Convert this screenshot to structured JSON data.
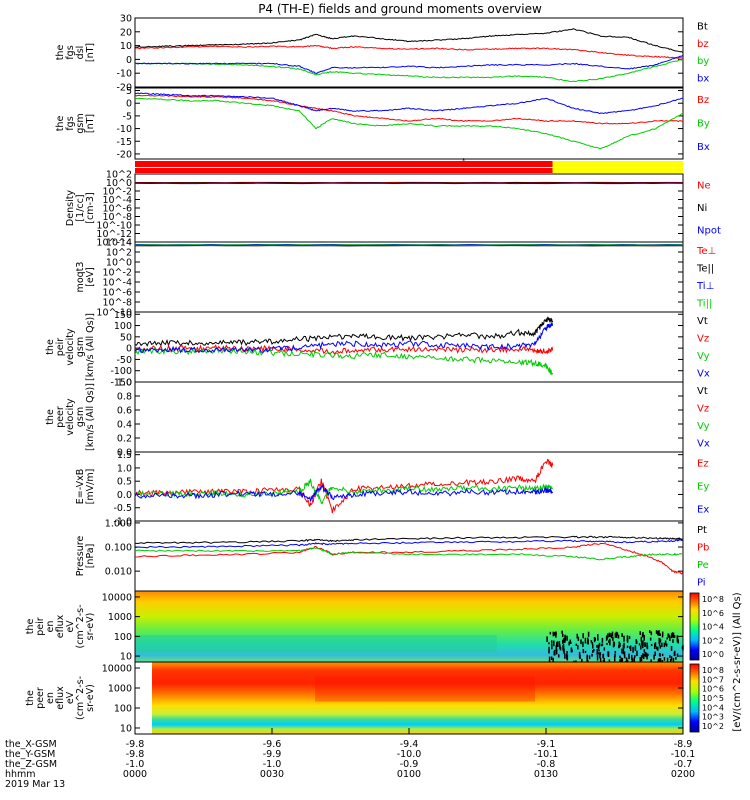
{
  "title": "P4 (TH-E) fields and ground moments overview",
  "date_label": "2019 Mar 13",
  "colors": {
    "black": "#000000",
    "red": "#ff0000",
    "green": "#00cc00",
    "blue": "#0000ff",
    "purple": "#8800aa"
  },
  "bars": {
    "bar1": {
      "segments": [
        {
          "color": "#ff0000",
          "to": 0.762
        },
        {
          "color": "#ffff00",
          "to": 1.0
        }
      ]
    },
    "bar2": {
      "segments": [
        {
          "color": "#ff0000",
          "to": 0.762
        },
        {
          "color": "#ffff00",
          "to": 1.0
        }
      ]
    }
  },
  "colorbar": {
    "label": "[eV/(cm^2-s-sr-eV)] (All Qs)",
    "ion_ticks": [
      "10^8",
      "10^6",
      "10^4",
      "10^2",
      "10^0"
    ],
    "ele_ticks": [
      "10^8",
      "10^7",
      "10^6",
      "10^5",
      "10^4",
      "10^3",
      "10^2"
    ]
  },
  "xaxis": {
    "row_labels": [
      "the_X-GSM",
      "the_Y-GSM",
      "the_Z-GSM",
      "hhmm"
    ],
    "columns": [
      {
        "X": "-9.8",
        "Y": "-9.8",
        "Z": "-1.0",
        "t": "0000"
      },
      {
        "X": "-9.6",
        "Y": "-9.9",
        "Z": "-1.0",
        "t": "0030"
      },
      {
        "X": "-9.4",
        "Y": "-10.0",
        "Z": "-0.9",
        "t": "0100"
      },
      {
        "X": "-9.1",
        "Y": "-10.1",
        "Z": "-0.8",
        "t": "0130"
      },
      {
        "X": "-8.9",
        "Y": "-10.1",
        "Z": "-0.7",
        "t": "0200"
      }
    ]
  },
  "chart_data": [
    {
      "id": "fgs_dsl",
      "type": "line",
      "ylabel": [
        "the",
        "fgs",
        "dsl",
        "[nT]"
      ],
      "ylim": [
        -20,
        30
      ],
      "yticks": [
        "30",
        "20",
        "10",
        "0",
        "-10",
        "-20"
      ],
      "legend": [
        {
          "label": "Bt",
          "color": "#000000"
        },
        {
          "label": "bz",
          "color": "#ff0000"
        },
        {
          "label": "by",
          "color": "#00cc00"
        },
        {
          "label": "bx",
          "color": "#0000ff"
        }
      ],
      "x": [
        0,
        0.05,
        0.1,
        0.15,
        0.2,
        0.25,
        0.3,
        0.33,
        0.36,
        0.4,
        0.45,
        0.5,
        0.55,
        0.6,
        0.65,
        0.7,
        0.75,
        0.8,
        0.85,
        0.9,
        0.95,
        1.0
      ],
      "series": [
        {
          "name": "Bt",
          "color": "#000000",
          "values": [
            9,
            9.5,
            10,
            10.5,
            11,
            12,
            14,
            18,
            15,
            17,
            15,
            13,
            14,
            15,
            17,
            18,
            19,
            22,
            17,
            16,
            10,
            5
          ]
        },
        {
          "name": "bz",
          "color": "#ff0000",
          "values": [
            8,
            8.5,
            9,
            9.5,
            9,
            9.5,
            9,
            10,
            8,
            9,
            8,
            7.5,
            8,
            7,
            7.5,
            8,
            8,
            7,
            5,
            3,
            2,
            1
          ]
        },
        {
          "name": "by",
          "color": "#00cc00",
          "values": [
            -3,
            -3,
            -3,
            -3.5,
            -4,
            -5,
            -7,
            -11,
            -9,
            -10,
            -11,
            -12,
            -13,
            -13,
            -13,
            -12,
            -13,
            -16,
            -14,
            -10,
            -5,
            0
          ]
        },
        {
          "name": "bx",
          "color": "#0000ff",
          "values": [
            -3,
            -3,
            -3,
            -3,
            -3,
            -3,
            -5,
            -10,
            -6,
            -6,
            -6,
            -5,
            -6,
            -5,
            -4,
            -4,
            -4,
            -3,
            -5,
            -7,
            -4,
            3
          ]
        }
      ]
    },
    {
      "id": "fgs_gsm",
      "type": "line",
      "ylabel": [
        "the",
        "fgs",
        "gsm",
        "[nT]"
      ],
      "ylim": [
        -22,
        6
      ],
      "yticks": [
        "5",
        "0",
        "-5",
        "-10",
        "-15",
        "-20"
      ],
      "legend": [
        {
          "label": "Bz",
          "color": "#ff0000"
        },
        {
          "label": "By",
          "color": "#00cc00"
        },
        {
          "label": "Bx",
          "color": "#0000ff"
        }
      ],
      "x": [
        0,
        0.05,
        0.1,
        0.15,
        0.2,
        0.25,
        0.3,
        0.33,
        0.36,
        0.4,
        0.45,
        0.5,
        0.55,
        0.6,
        0.65,
        0.7,
        0.75,
        0.8,
        0.85,
        0.9,
        0.95,
        1.0
      ],
      "series": [
        {
          "name": "Bz",
          "color": "#ff0000",
          "values": [
            3,
            3,
            2.5,
            2.5,
            2,
            1,
            -1,
            -2,
            -3,
            -5,
            -6,
            -7,
            -6,
            -7,
            -7,
            -6,
            -7,
            -7,
            -8,
            -8,
            -7,
            -7
          ]
        },
        {
          "name": "By",
          "color": "#00cc00",
          "values": [
            2,
            1.5,
            1,
            1,
            0,
            -1,
            -3,
            -10,
            -6,
            -8,
            -9,
            -8,
            -9,
            -9,
            -9,
            -10,
            -12,
            -15,
            -18,
            -13,
            -10,
            -4
          ]
        },
        {
          "name": "Bx",
          "color": "#0000ff",
          "values": [
            4,
            3.5,
            3,
            3,
            2.5,
            2,
            -1,
            -3,
            -2,
            -3,
            -3,
            -2,
            -3,
            -2,
            -1,
            0,
            2,
            -2,
            -4,
            -3,
            -1,
            2
          ]
        }
      ]
    },
    {
      "id": "density",
      "type": "line",
      "log": true,
      "ylabel": [
        "Density",
        "[1/cc]",
        "[cm-3]"
      ],
      "ylim": [
        1e-14,
        100
      ],
      "yticks": [
        "10^2",
        "10^0",
        "10^-2",
        "10^-4",
        "10^-6",
        "10^-8",
        "10^-10",
        "10^-12",
        "10^-14"
      ],
      "legend": [
        {
          "label": "Ne",
          "color": "#ff0000"
        },
        {
          "label": "Ni",
          "color": "#000000"
        },
        {
          "label": "Npot",
          "color": "#0000ff"
        }
      ],
      "x": [
        0,
        0.5,
        1.0
      ],
      "series": [
        {
          "name": "Ne",
          "color": "#ff0000",
          "values": [
            1,
            1,
            1
          ]
        },
        {
          "name": "Ni",
          "color": "#000000",
          "values": [
            0.8,
            0.8,
            0.8
          ]
        },
        {
          "name": "Npot",
          "color": "#0000ff",
          "values": [
            0.6,
            0.6,
            0.6
          ]
        }
      ]
    },
    {
      "id": "temperature",
      "type": "line",
      "log": true,
      "ylabel": [
        "moqt3",
        "[eV]"
      ],
      "ylim": [
        1e-10,
        10000
      ],
      "yticks": [
        "10^4",
        "10^2",
        "10^0",
        "10^-2",
        "10^-4",
        "10^-6",
        "10^-8",
        "10^-10"
      ],
      "legend": [
        {
          "label": "Te⊥",
          "color": "#ff0000"
        },
        {
          "label": "Te||",
          "color": "#000000"
        },
        {
          "label": "Ti⊥",
          "color": "#0000ff"
        },
        {
          "label": "Ti||",
          "color": "#00cc00"
        }
      ],
      "x": [
        0,
        0.5,
        1.0
      ],
      "series": [
        {
          "name": "Te⊥",
          "color": "#ff0000",
          "values": [
            2000,
            2000,
            2000
          ]
        },
        {
          "name": "Te||",
          "color": "#000000",
          "values": [
            1800,
            1800,
            1800
          ]
        },
        {
          "name": "Ti⊥",
          "color": "#0000ff",
          "values": [
            3000,
            3000,
            3000
          ]
        },
        {
          "name": "Ti||",
          "color": "#00cc00",
          "values": [
            2500,
            2500,
            2500
          ]
        }
      ]
    },
    {
      "id": "ion_velocity",
      "type": "line",
      "ylabel": [
        "the",
        "peir",
        "velocity",
        "gsm",
        "[km/s (All Qs)]"
      ],
      "ylim": [
        -150,
        160
      ],
      "yticks": [
        "150",
        "100",
        "50",
        "0",
        "-50",
        "-100",
        "-150"
      ],
      "legend": [
        {
          "label": "Vt",
          "color": "#000000"
        },
        {
          "label": "Vz",
          "color": "#ff0000"
        },
        {
          "label": "Vy",
          "color": "#00cc00"
        },
        {
          "label": "Vx",
          "color": "#0000ff"
        }
      ],
      "x": [
        0,
        0.05,
        0.1,
        0.15,
        0.2,
        0.25,
        0.3,
        0.35,
        0.4,
        0.45,
        0.5,
        0.55,
        0.6,
        0.65,
        0.7,
        0.73,
        0.75,
        0.762
      ],
      "series": [
        {
          "name": "Vt",
          "color": "#000000",
          "values": [
            20,
            22,
            24,
            22,
            25,
            30,
            40,
            45,
            55,
            50,
            45,
            48,
            60,
            50,
            70,
            65,
            130,
            120
          ]
        },
        {
          "name": "Vz",
          "color": "#ff0000",
          "values": [
            -5,
            0,
            -3,
            2,
            -5,
            0,
            -10,
            -15,
            -10,
            -5,
            -8,
            -5,
            -10,
            -8,
            -5,
            -10,
            -12,
            -10
          ]
        },
        {
          "name": "Vy",
          "color": "#00cc00",
          "values": [
            -15,
            -12,
            -15,
            -10,
            -15,
            -20,
            -25,
            -30,
            -35,
            -30,
            -40,
            -45,
            -50,
            -55,
            -60,
            -65,
            -80,
            -110
          ]
        },
        {
          "name": "Vx",
          "color": "#0000ff",
          "values": [
            -10,
            -5,
            -8,
            -5,
            -10,
            -5,
            0,
            15,
            20,
            10,
            20,
            15,
            10,
            5,
            10,
            20,
            90,
            110
          ]
        }
      ]
    },
    {
      "id": "ele_velocity",
      "type": "line",
      "ylabel": [
        "the",
        "peer",
        "velocity",
        "gsm",
        "[km/s (All Qs)]"
      ],
      "ylim": [
        0,
        1
      ],
      "yticks": [
        "1.0",
        "0.8",
        "0.6",
        "0.4",
        "0.2",
        "0.0"
      ],
      "legend": [
        {
          "label": "Vt",
          "color": "#000000"
        },
        {
          "label": "Vz",
          "color": "#ff0000"
        },
        {
          "label": "Vy",
          "color": "#00cc00"
        },
        {
          "label": "Vx",
          "color": "#0000ff"
        }
      ],
      "x": [],
      "series": []
    },
    {
      "id": "efield",
      "type": "line",
      "ylabel": [
        "E=-VxB",
        "[mV/m]"
      ],
      "ylim": [
        -1,
        1.6
      ],
      "yticks": [
        "1.5",
        "1.0",
        "0.5",
        "0.0",
        "-0.5",
        "-1.0"
      ],
      "legend": [
        {
          "label": "Ez",
          "color": "#ff0000"
        },
        {
          "label": "Ey",
          "color": "#00cc00"
        },
        {
          "label": "Ex",
          "color": "#0000ff"
        }
      ],
      "x": [
        0,
        0.05,
        0.1,
        0.15,
        0.2,
        0.25,
        0.3,
        0.32,
        0.34,
        0.36,
        0.4,
        0.45,
        0.5,
        0.55,
        0.6,
        0.65,
        0.7,
        0.73,
        0.75,
        0.762
      ],
      "series": [
        {
          "name": "Ez",
          "color": "#ff0000",
          "values": [
            0.05,
            0.05,
            0.08,
            0.1,
            0.12,
            0.15,
            0.2,
            -0.4,
            0.5,
            -0.6,
            0.2,
            0.25,
            0.35,
            0.4,
            0.45,
            0.45,
            0.6,
            0.5,
            1.3,
            1.1
          ]
        },
        {
          "name": "Ey",
          "color": "#00cc00",
          "values": [
            0.0,
            0.05,
            0.0,
            0.05,
            0.0,
            0.05,
            0.1,
            0.5,
            -0.3,
            0.3,
            0.1,
            0.15,
            0.2,
            0.2,
            0.25,
            0.2,
            0.25,
            0.2,
            0.3,
            0.2
          ]
        },
        {
          "name": "Ex",
          "color": "#0000ff",
          "values": [
            -0.05,
            0.0,
            -0.05,
            0.0,
            0.05,
            0.0,
            0.05,
            -0.2,
            0.3,
            -0.1,
            0.0,
            0.05,
            0.1,
            0.0,
            0.1,
            0.05,
            0.1,
            0.1,
            0.15,
            0.1
          ]
        }
      ]
    },
    {
      "id": "pressure",
      "type": "line",
      "log": true,
      "ylabel": [
        "Pressure",
        "[nPa]"
      ],
      "ylim": [
        0.0015,
        1.2
      ],
      "yticks": [
        "1.000",
        "0.100",
        "0.010"
      ],
      "legend": [
        {
          "label": "Pt",
          "color": "#000000"
        },
        {
          "label": "Pb",
          "color": "#ff0000"
        },
        {
          "label": "Pe",
          "color": "#00cc00"
        },
        {
          "label": "Pi",
          "color": "#0000ff"
        }
      ],
      "x": [
        0,
        0.1,
        0.2,
        0.3,
        0.33,
        0.36,
        0.4,
        0.5,
        0.6,
        0.7,
        0.8,
        0.85,
        0.9,
        0.95,
        0.98,
        1.0
      ],
      "series": [
        {
          "name": "Pt",
          "color": "#000000",
          "values": [
            0.15,
            0.15,
            0.16,
            0.18,
            0.2,
            0.18,
            0.2,
            0.22,
            0.24,
            0.25,
            0.26,
            0.26,
            0.25,
            0.23,
            0.22,
            0.22
          ]
        },
        {
          "name": "Pb",
          "color": "#ff0000",
          "values": [
            0.04,
            0.045,
            0.05,
            0.06,
            0.1,
            0.05,
            0.06,
            0.06,
            0.07,
            0.08,
            0.1,
            0.14,
            0.07,
            0.03,
            0.01,
            0.008
          ]
        },
        {
          "name": "Pe",
          "color": "#00cc00",
          "values": [
            0.07,
            0.07,
            0.07,
            0.07,
            0.09,
            0.05,
            0.06,
            0.05,
            0.05,
            0.05,
            0.04,
            0.03,
            0.04,
            0.05,
            0.05,
            0.05
          ]
        },
        {
          "name": "Pi",
          "color": "#0000ff",
          "values": [
            0.1,
            0.1,
            0.11,
            0.12,
            0.14,
            0.13,
            0.14,
            0.15,
            0.16,
            0.17,
            0.18,
            0.17,
            0.16,
            0.17,
            0.18,
            0.2
          ]
        }
      ]
    },
    {
      "id": "ion_spectrogram",
      "type": "heatmap",
      "ylabel": [
        "the",
        "peir",
        "en",
        "eflux",
        "eV",
        "(cm^2-s-",
        "sr-eV)"
      ],
      "ylim": [
        5,
        20000
      ],
      "yticks": [
        "10000",
        "1000",
        "100",
        "10"
      ]
    },
    {
      "id": "ele_spectrogram",
      "type": "heatmap",
      "ylabel": [
        "the",
        "peer",
        "en",
        "eflux",
        "eV",
        "(cm^2-s-",
        "sr-eV)"
      ],
      "ylim": [
        5,
        20000
      ],
      "yticks": [
        "10000",
        "1000",
        "100",
        "10"
      ]
    }
  ]
}
